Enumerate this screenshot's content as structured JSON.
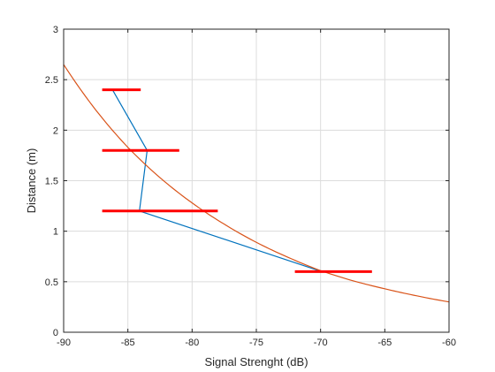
{
  "chart_data": {
    "type": "line",
    "title": "",
    "xlabel": "Signal Strenght  (dB)",
    "ylabel": "Distance (m)",
    "xlim": [
      -90,
      -60
    ],
    "ylim": [
      0,
      3
    ],
    "xticks": [
      -90,
      -85,
      -80,
      -75,
      -70,
      -65,
      -60
    ],
    "yticks": [
      0,
      0.5,
      1,
      1.5,
      2,
      2.5,
      3
    ],
    "grid": true,
    "legend": "none",
    "series": [
      {
        "color": "#0072BD",
        "kind": "line",
        "x": [
          -86.2,
          -83.5,
          -84.1,
          -69.9
        ],
        "y": [
          2.4,
          1.8,
          1.2,
          0.6
        ]
      },
      {
        "color": "#D95319",
        "kind": "curve",
        "x": [
          -90,
          -87.5,
          -85,
          -82.5,
          -80,
          -77.5,
          -75,
          -72.5,
          -70,
          -67.5,
          -65,
          -62.5,
          -60
        ],
        "y": [
          2.65,
          2.2,
          1.83,
          1.53,
          1.28,
          1.07,
          0.89,
          0.74,
          0.61,
          0.51,
          0.43,
          0.36,
          0.3
        ]
      }
    ],
    "error_bars": {
      "color": "#FF0000",
      "items": [
        {
          "y": 2.4,
          "x_low": -87,
          "x_high": -84
        },
        {
          "y": 1.8,
          "x_low": -87,
          "x_high": -81
        },
        {
          "y": 1.2,
          "x_low": -87,
          "x_high": -78
        },
        {
          "y": 0.6,
          "x_low": -72,
          "x_high": -66
        }
      ]
    }
  }
}
